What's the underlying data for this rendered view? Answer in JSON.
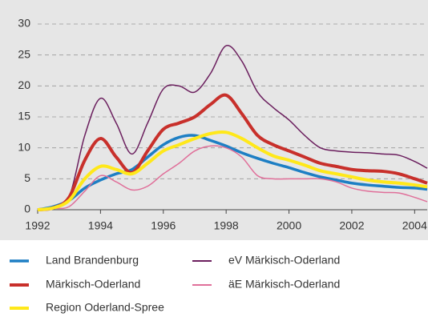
{
  "chart_data": {
    "type": "line",
    "x": [
      1992,
      1992.5,
      1993,
      1993.5,
      1994,
      1994.5,
      1995,
      1995.5,
      1996,
      1996.5,
      1997,
      1997.5,
      1998,
      1998.5,
      1999,
      1999.5,
      2000,
      2000.5,
      2001,
      2001.5,
      2002,
      2002.5,
      2003,
      2003.5,
      2004,
      2004.4
    ],
    "series": [
      {
        "name": "Land Brandenburg",
        "color": "#1e7fc4",
        "width": 3.5,
        "values": [
          0,
          0.5,
          1.5,
          3.5,
          4.8,
          5.8,
          6.5,
          8.5,
          10.5,
          11.7,
          12,
          11.2,
          10.3,
          9.2,
          8.3,
          7.5,
          6.8,
          6,
          5.3,
          4.8,
          4.3,
          4,
          3.8,
          3.6,
          3.5,
          3.3
        ]
      },
      {
        "name": "eV Märkisch-Oderland",
        "color": "#6b1f5e",
        "width": 1.5,
        "values": [
          0,
          0.5,
          2,
          12,
          18,
          14,
          9,
          14,
          19.5,
          20,
          19,
          22,
          26.5,
          24,
          19,
          16.5,
          14.5,
          12,
          10,
          9.5,
          9.3,
          9.2,
          9,
          8.8,
          7.8,
          6.7
        ]
      },
      {
        "name": "Märkisch-Oderland",
        "color": "#c8302b",
        "width": 4,
        "values": [
          0,
          0.3,
          2,
          8,
          11.5,
          8.5,
          6,
          9.5,
          13,
          14,
          15,
          17,
          18.5,
          15.5,
          12,
          10.5,
          9.5,
          8.5,
          7.5,
          7,
          6.5,
          6.3,
          6.2,
          5.8,
          5,
          4.3
        ]
      },
      {
        "name": "äE Märkisch-Oderland",
        "color": "#e0709a",
        "width": 1.5,
        "values": [
          0,
          0.2,
          0.5,
          3,
          5.5,
          4.5,
          3.2,
          3.8,
          5.8,
          7.5,
          9.5,
          10.3,
          10,
          8.5,
          5.5,
          5,
          5,
          5,
          5,
          4.5,
          3.5,
          3,
          2.8,
          2.7,
          2,
          1.3
        ]
      },
      {
        "name": "Region Oderland-Spree",
        "color": "#ffe81a",
        "width": 4,
        "values": [
          0,
          0.3,
          1.5,
          5,
          7,
          6.5,
          5.8,
          7.5,
          9.5,
          10.5,
          11.5,
          12.3,
          12.5,
          11.5,
          10,
          8.7,
          8,
          7.2,
          6.3,
          5.8,
          5.3,
          4.8,
          4.5,
          4.3,
          4,
          3.7
        ]
      }
    ],
    "xlim": [
      1992,
      2004.4
    ],
    "xticks": [
      1992,
      1994,
      1996,
      1998,
      2000,
      2002,
      2004
    ],
    "ylim": [
      0,
      30
    ],
    "yticks": [
      0,
      5,
      10,
      15,
      20,
      25,
      30
    ],
    "grid": true
  }
}
